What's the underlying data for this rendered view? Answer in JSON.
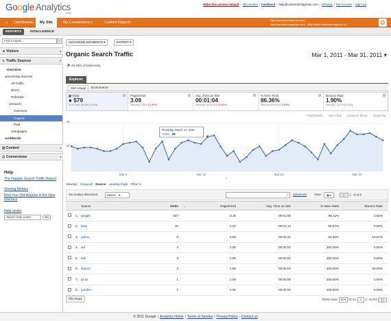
{
  "header": {
    "logo_google": "Google",
    "logo_analytics": "Analytics",
    "logo_beta": "beta",
    "links": {
      "default_version": "Make this version default",
      "old_version": "Old version",
      "feedback": "Feedback",
      "email": "help@cameronchapman.com",
      "settings": "Settings",
      "my_account": "My Account",
      "sign_out": "Sign out"
    },
    "colors": {
      "nav_bg": "#e6721c",
      "accent": "#3b6fc1",
      "selected_nav": "#5580c4"
    }
  },
  "nav": {
    "home_icon": "home-icon",
    "tabs": [
      {
        "label": "Dashboards"
      },
      {
        "label": "My Site"
      },
      {
        "label": "My Conversions ▾"
      },
      {
        "label": "Custom Reports"
      }
    ],
    "account_line1": "http://cameronchapman.com",
    "account_line2": "http://cameronchapman.com - http://www.cameronchapman.co",
    "settings_icon": "gear-icon"
  },
  "subnav": {
    "reports": "REPORTS",
    "intelligence": "INTELLIGENCE"
  },
  "sidebar": {
    "find_placeholder": "Find a report...",
    "find_btn": "»",
    "sections": {
      "visitors": "Visitors",
      "traffic_sources": "Traffic Sources",
      "content": "Content",
      "conversions": "Conversions"
    },
    "items": {
      "overview": "Overview",
      "incoming": "▸Incoming Sources",
      "all_traffic": "All Traffic",
      "direct": "Direct",
      "referrals": "Referrals",
      "search": "▸Search",
      "search_overview": "Overview",
      "organic": "Organic",
      "paid": "Paid",
      "campaigns": "Campaigns",
      "adwords": "▸AdWords"
    },
    "help": {
      "title": "Help",
      "links": [
        "The Organic Search Traffic Report",
        "Viewing Metrics",
        "Find Your Old Reports in the New Interface"
      ],
      "center": "Help center",
      "search_placeholder": "Search help center",
      "go": "Go"
    }
  },
  "toolbar": {
    "advanced_segments": "ADVANCED SEGMENTS ▾",
    "export": "EXPORT ▾"
  },
  "report": {
    "title": "Organic Search Traffic",
    "date_range": "Mar 1, 2011 - Mar 31, 2011 ▾",
    "pct_of_total": "26.26% of total visits"
  },
  "explorer": {
    "tab": "Explorer",
    "subtabs": [
      "Site Usage",
      "Ecommerce"
    ]
  },
  "metrics": [
    {
      "label": "Visits",
      "value": "579",
      "sub": "% of Total: 26.26% (2,205)",
      "delta": ""
    },
    {
      "label": "Pages/Visit",
      "value": "3.09",
      "sub": "Site Avg: 3.55 ",
      "delta": "(-12.99%)"
    },
    {
      "label": "Avg. Time on Site",
      "value": "00:01:04",
      "sub": "Site Avg: 00:01:16 ",
      "delta": "(-15.65%)"
    },
    {
      "label": "% New Visits",
      "value": "86.36%",
      "sub": "Site Avg: 89.54% ",
      "delta": "(-3.54%)"
    },
    {
      "label": "Bounce Rate",
      "value": "1.90%",
      "sub": "Site Avg: 1.81% ",
      "delta": "(4.73%)"
    }
  ],
  "graph_modes": [
    "Graph Mode",
    "Line Chart",
    "Compare Metric",
    "Graph By"
  ],
  "chart_data": {
    "type": "area",
    "series": [
      {
        "name": "Visits",
        "values": [
          21,
          19,
          20,
          20,
          19,
          17,
          17,
          19,
          23,
          24,
          25,
          20,
          8,
          19,
          25,
          10,
          19,
          24,
          26,
          24,
          23,
          29,
          30,
          21,
          13,
          17,
          8,
          12,
          18,
          21,
          13,
          17,
          18,
          22,
          26,
          24,
          21,
          16,
          10,
          23,
          15,
          22,
          27,
          34,
          31,
          31,
          32,
          29,
          26
        ]
      }
    ],
    "ylim": [
      0,
      40
    ],
    "y_ticks": [
      20,
      40
    ],
    "x_labels": [
      "Mar 6",
      "Mar 13",
      "Mar 20",
      "Mar 27"
    ],
    "x_label_index": [
      8,
      20,
      32,
      44
    ],
    "tooltip": {
      "date": "Thursday, March 17, 2011",
      "label": "Visits:",
      "value": "29",
      "index": 21
    },
    "grid": true,
    "colors": {
      "line": "#3b6fc1",
      "fill": "#e3ebf6"
    }
  },
  "viewing": {
    "label": "Viewing:",
    "options": [
      "Keyword",
      "Source",
      "Landing Page",
      "Other ▾"
    ],
    "selected": 1
  },
  "table_controls": {
    "secondary_dim": "Secondary dimension:",
    "select": "Select... ▾",
    "advanced": "advanced",
    "view_label": "View:",
    "view_value": "▦ ▾",
    "pager": "1 - 8 of 8"
  },
  "table": {
    "columns": [
      "Source",
      "Visits",
      "↓",
      "Pages/Visit",
      "Avg. Time on Site",
      "% New Visits",
      "Bounce Rate"
    ],
    "rows": [
      {
        "n": "1.",
        "source": "google",
        "visits": "547",
        "ppv": "3.15",
        "time": "00:01:05",
        "new": "86.11%",
        "bounce": "1.65%"
      },
      {
        "n": "2.",
        "source": "bing",
        "visits": "15",
        "ppv": "2.27",
        "time": "00:01:14",
        "new": "86.67%",
        "bounce": "0.00%"
      },
      {
        "n": "3.",
        "source": "yahoo",
        "visits": "6",
        "ppv": "2.50",
        "time": "00:00:31",
        "new": "83.33%",
        "bounce": "16.67%"
      },
      {
        "n": "4.",
        "source": "aol",
        "visits": "4",
        "ppv": "2.00",
        "time": "00:00:02",
        "new": "100.00%",
        "bounce": "0.00%"
      },
      {
        "n": "5.",
        "source": "ask",
        "visits": "3",
        "ppv": "2.00",
        "time": "00:00:01",
        "new": "100.00%",
        "bounce": "0.00%"
      },
      {
        "n": "6.",
        "source": "search",
        "visits": "2",
        "ppv": "1.50",
        "time": "00:00:03",
        "new": "100.00%",
        "bounce": "50.00%"
      },
      {
        "n": "7.",
        "source": "lycos",
        "visits": "1",
        "ppv": "2.00",
        "time": "00:00:05",
        "new": "100.00%",
        "bounce": "0.00%"
      },
      {
        "n": "8.",
        "source": "yandex",
        "visits": "1",
        "ppv": "2.00",
        "time": "00:00:03",
        "new": "100.00%",
        "bounce": "0.00%"
      }
    ]
  },
  "bottom": {
    "plot_rows": "Plot Rows",
    "show_rows": "Show rows:",
    "rows_value": "10 ▾",
    "goto": "Go to:",
    "goto_value": "1",
    "range": "1 - 8 of 8"
  },
  "footer": {
    "copyright": "© 2011 Google",
    "links": [
      "Analytics Home",
      "Terms of Service",
      "Privacy Policy",
      "Contact us"
    ]
  }
}
